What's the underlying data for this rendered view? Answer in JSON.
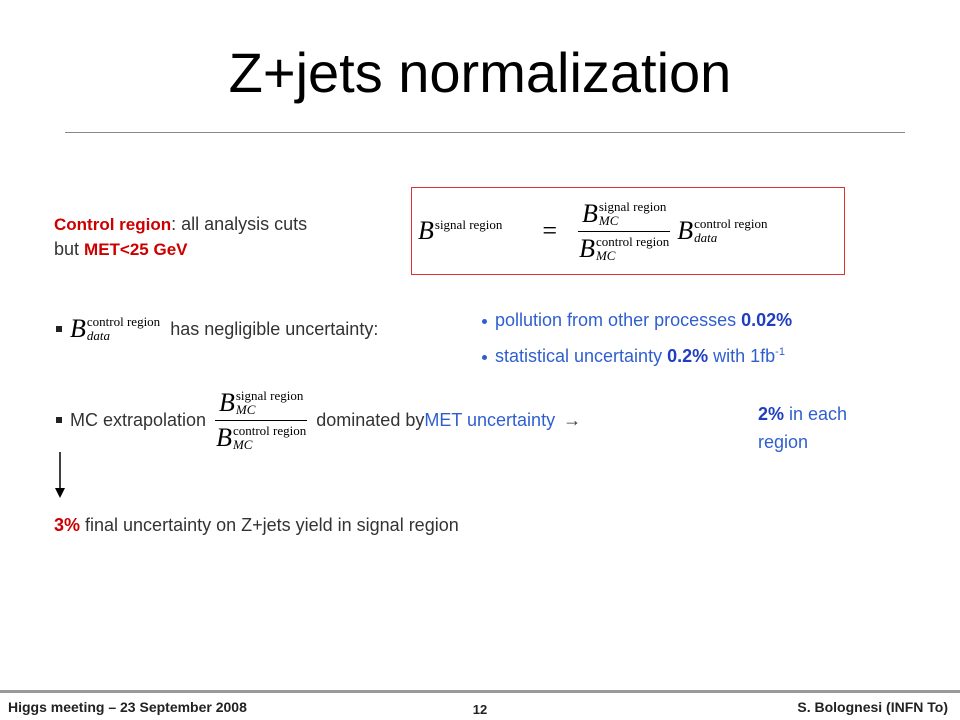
{
  "title": "Z+jets normalization",
  "control_region": {
    "name": "Control region",
    "text": ": all analysis cuts",
    "text2": "but ",
    "cut": "MET<25 GeV"
  },
  "formula": {
    "symbol": "B",
    "signal": "signal region",
    "control": "control region",
    "equals": "=",
    "mc": "MC",
    "data": "data"
  },
  "bullet1": {
    "text": "has negligible uncertainty:",
    "sub1": {
      "text": "pollution from other processes ",
      "value": "0.02%"
    },
    "sub2": {
      "text": "statistical uncertainty ",
      "value": "0.2%",
      "text2": " with 1fb",
      "exp": "-1"
    }
  },
  "bullet2": {
    "text": "MC extrapolation",
    "text2": "dominated by ",
    "source": "MET uncertainty",
    "arrow": "→",
    "value": "2%",
    "text3": " in each",
    "text4": "region"
  },
  "conclusion": {
    "value": "3%",
    "text": " final uncertainty on Z+jets yield in signal region"
  },
  "footer": {
    "left": "Higgs meeting – 23 September 2008",
    "page": "12",
    "right": "S. Bolognesi (INFN To)"
  }
}
